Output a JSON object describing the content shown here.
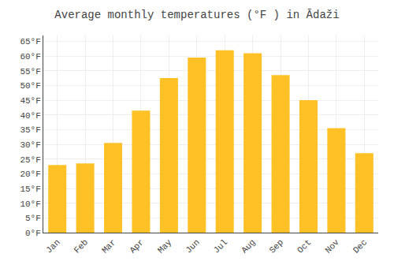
{
  "chart_data": {
    "type": "bar",
    "title": "Average monthly temperatures (°F ) in Ādaži",
    "categories": [
      "Jan",
      "Feb",
      "Mar",
      "Apr",
      "May",
      "Jun",
      "Jul",
      "Aug",
      "Sep",
      "Oct",
      "Nov",
      "Dec"
    ],
    "values": [
      23,
      23.5,
      30.5,
      41.5,
      52.5,
      59.5,
      62,
      61,
      53.5,
      45,
      35.5,
      27
    ],
    "color": "#FFC125",
    "ylim": [
      0,
      67
    ],
    "yticks": [
      {
        "value": 0,
        "label": "0°F"
      },
      {
        "value": 5,
        "label": "5°F"
      },
      {
        "value": 10,
        "label": "10°F"
      },
      {
        "value": 15,
        "label": "15°F"
      },
      {
        "value": 20,
        "label": "20°F"
      },
      {
        "value": 25,
        "label": "25°F"
      },
      {
        "value": 30,
        "label": "30°F"
      },
      {
        "value": 35,
        "label": "35°F"
      },
      {
        "value": 40,
        "label": "40°F"
      },
      {
        "value": 45,
        "label": "45°F"
      },
      {
        "value": 50,
        "label": "50°F"
      },
      {
        "value": 55,
        "label": "55°F"
      },
      {
        "value": 60,
        "label": "60°F"
      },
      {
        "value": 65,
        "label": "65°F"
      }
    ],
    "grid": true
  }
}
